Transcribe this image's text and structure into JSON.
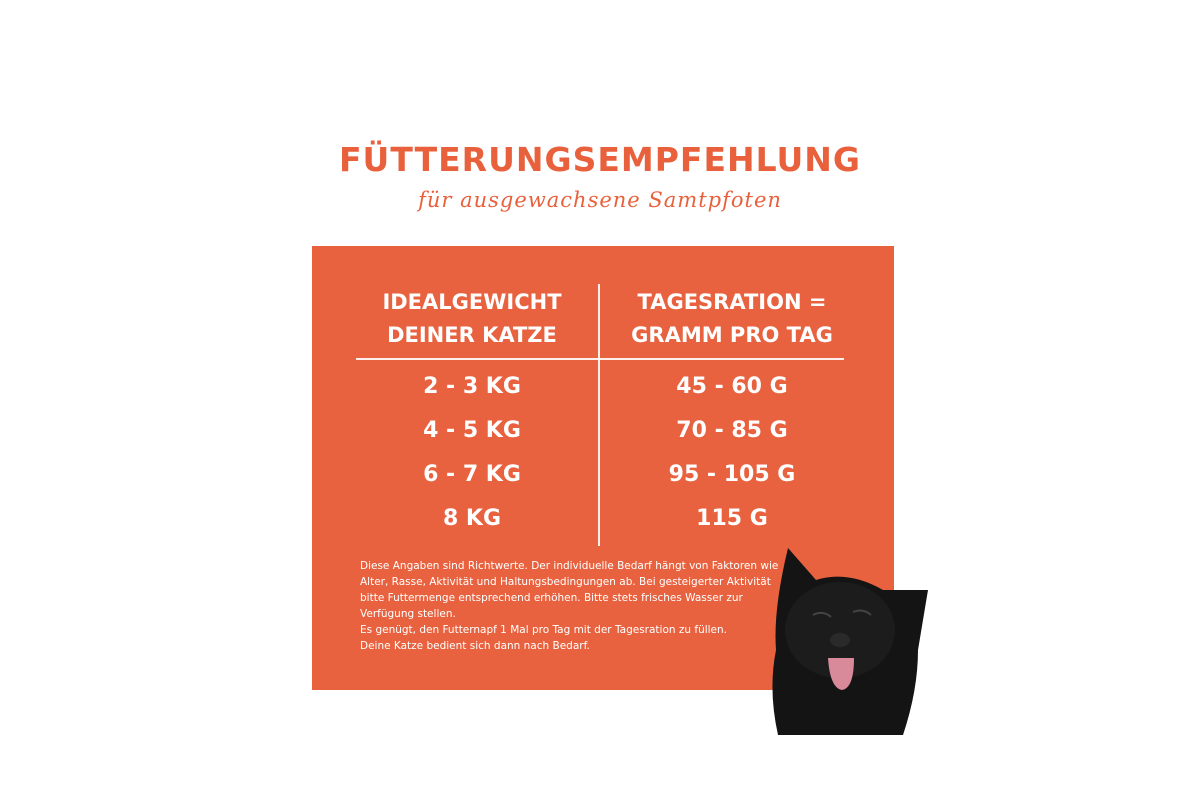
{
  "title": "FÜTTERUNGSEMPFEHLUNG",
  "subtitle": "für ausgewachsene Samtpfoten",
  "table": {
    "headers": [
      [
        "IDEALGEWICHT",
        "DEINER KATZE"
      ],
      [
        "TAGESRATION =",
        "GRAMM PRO TAG"
      ]
    ],
    "rows": [
      [
        "2 - 3 KG",
        "45 - 60 G"
      ],
      [
        "4 - 5 KG",
        "70 - 85 G"
      ],
      [
        "6 - 7 KG",
        "95 - 105 G"
      ],
      [
        "8 KG",
        "115 G"
      ]
    ]
  },
  "note": {
    "lines": [
      "Diese Angaben sind Richtwerte. Der individuelle Bedarf hängt von Faktoren wie Alter, Rasse, Aktivität und Haltungsbedingungen ab. Bei gesteigerter Aktivität bitte Futtermenge entsprechend erhöhen. Bitte stets frisches Wasser zur Verfügung stellen.",
      "Es genügt, den Futternapf 1 Mal pro Tag mit der Tagesration zu füllen.",
      "Deine Katze bedient sich dann nach Bedarf."
    ]
  },
  "colors": {
    "accent": "#e8623f",
    "text_on_accent": "#ffffff"
  },
  "image": "black-cat-licking-photo"
}
